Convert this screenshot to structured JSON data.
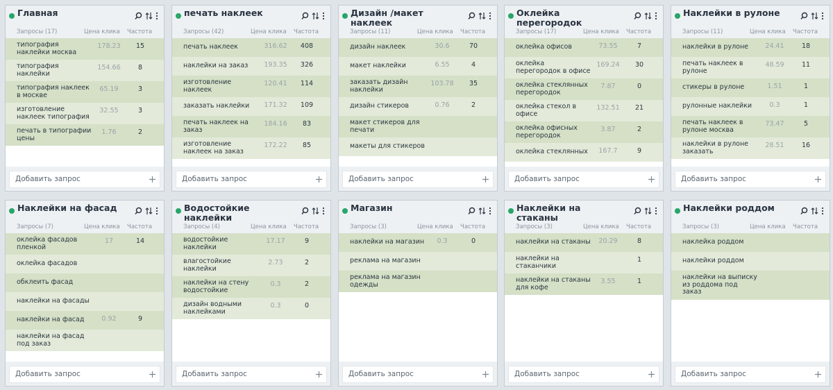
{
  "add_label": "Добавить запрос",
  "columns": [
    "Цена клика",
    "Частота"
  ],
  "cards": [
    {
      "title": "Главная",
      "count": "Запросы (17)",
      "rows": [
        [
          "типография наклейки москва",
          178.23,
          15
        ],
        [
          "типография наклейки",
          154.66,
          8
        ],
        [
          "типография наклеек в москве",
          65.19,
          3
        ],
        [
          "изготовление наклеек типография",
          32.55,
          3
        ],
        [
          "печать в типографии цены",
          1.76,
          2
        ]
      ]
    },
    {
      "title": "печать наклеек",
      "count": "Запросы (42)",
      "rows": [
        [
          "печать наклеек",
          316.62,
          408
        ],
        [
          "наклейки на заказ",
          193.35,
          326
        ],
        [
          "изготовление наклеек",
          120.41,
          114
        ],
        [
          "заказать наклейки",
          171.32,
          109
        ],
        [
          "печать наклеек на заказ",
          184.16,
          83
        ],
        [
          "изготовление наклеек на заказ",
          172.22,
          85
        ]
      ]
    },
    {
      "title": "Дизайн /макет наклеек",
      "count": "Запросы (11)",
      "rows": [
        [
          "дизайн наклеек",
          30.6,
          70
        ],
        [
          "макет наклейки",
          6.55,
          4
        ],
        [
          "заказать дизайн наклейки",
          103.78,
          35
        ],
        [
          "дизайн стикеров",
          0.76,
          2
        ],
        [
          "макет стикеров для печати",
          null,
          null
        ],
        [
          "макеты для стикеров",
          null,
          null
        ]
      ]
    },
    {
      "title": "Оклейка перегородок",
      "count": "Запросы (17)",
      "rows": [
        [
          "оклейка офисов",
          73.55,
          7
        ],
        [
          "оклейка перегородок в офисе",
          169.24,
          30
        ],
        [
          "оклейка стеклянных перегородок",
          7.87,
          0
        ],
        [
          "оклейка стекол в офисе",
          132.51,
          21
        ],
        [
          "оклейка офисных перегородок",
          3.87,
          2
        ],
        [
          "оклейка стеклянных",
          167.7,
          9
        ]
      ]
    },
    {
      "title": "Наклейки в рулоне",
      "count": "Запросы (11)",
      "rows": [
        [
          "наклейки в рулоне",
          24.41,
          18
        ],
        [
          "печать наклеек в рулоне",
          48.59,
          11
        ],
        [
          "стикеры в рулоне",
          1.51,
          1
        ],
        [
          "рулонные наклейки",
          0.3,
          1
        ],
        [
          "печать наклеек в рулоне москва",
          73.47,
          5
        ],
        [
          "наклейки в рулоне заказать",
          28.51,
          16
        ]
      ]
    },
    {
      "title": "Наклейки на фасад",
      "count": "Запросы (7)",
      "rows": [
        [
          "оклейка фасадов пленкой",
          17,
          14
        ],
        [
          "оклейка фасадов",
          null,
          null
        ],
        [
          "обклеить фасад",
          null,
          null
        ],
        [
          "наклейки на фасады",
          null,
          null
        ],
        [
          "наклейки на фасад",
          0.92,
          9
        ],
        [
          "наклейки на фасад под заказ",
          null,
          null
        ]
      ]
    },
    {
      "title": "Водостойкие наклейки",
      "count": "Запросы (4)",
      "rows": [
        [
          "водостойкие наклейки",
          17.17,
          9
        ],
        [
          "влагостойкие наклейки",
          2.73,
          2
        ],
        [
          "наклейки на стену водостойкие",
          0.3,
          2
        ],
        [
          "дизайн водными наклейками",
          0.3,
          0
        ]
      ]
    },
    {
      "title": "Магазин",
      "count": "Запросы (3)",
      "rows": [
        [
          "наклейки на магазин",
          0.3,
          0
        ],
        [
          "реклама на магазин",
          null,
          null
        ],
        [
          "реклама на магазин одежды",
          null,
          null
        ]
      ]
    },
    {
      "title": "Наклейки на стаканы",
      "count": "Запросы (3)",
      "rows": [
        [
          "наклейки на стаканы",
          20.29,
          8
        ],
        [
          "наклейки на стаканчики",
          null,
          1
        ],
        [
          "наклейки на стаканы для кофе",
          3.55,
          1
        ]
      ]
    },
    {
      "title": "Наклейки роддом",
      "count": "Запросы (3)",
      "rows": [
        [
          "наклейка роддом",
          null,
          null
        ],
        [
          "наклейки роддом",
          null,
          null
        ],
        [
          "наклейки на выписку из роддома под заказ",
          null,
          null
        ]
      ]
    }
  ]
}
